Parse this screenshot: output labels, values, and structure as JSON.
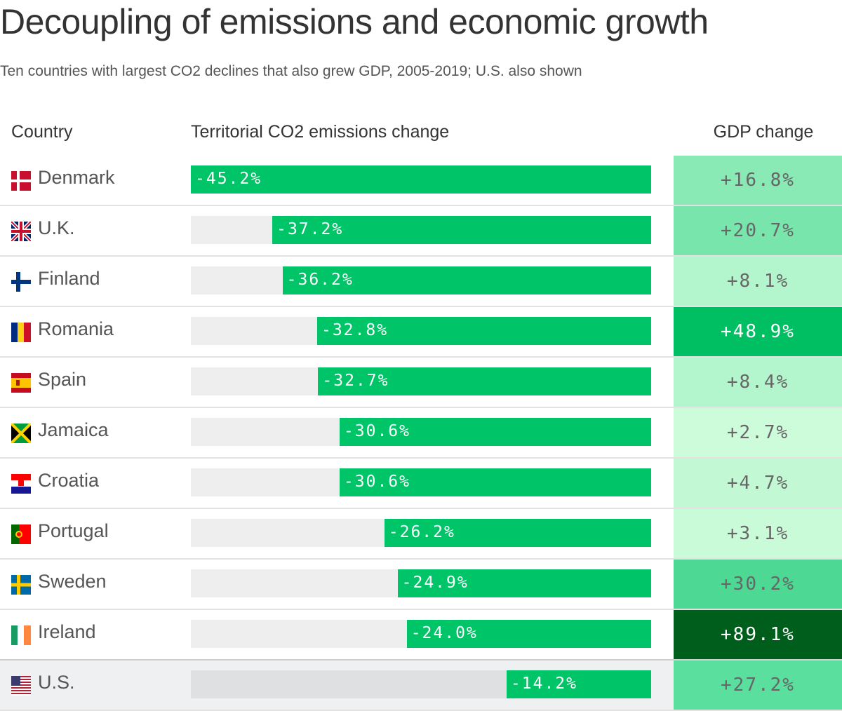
{
  "title": "Decoupling of emissions and economic growth",
  "subtitle": "Ten countries with largest CO2 declines that also grew GDP, 2005-2019; U.S. also shown",
  "chart_data": {
    "type": "table",
    "columns": [
      "Country",
      "Territorial CO2 emissions change",
      "GDP change"
    ],
    "bar_max": 45.2,
    "rows": [
      {
        "country": "Denmark",
        "flag": "dk",
        "co2": -45.2,
        "co2_label": "-45.2%",
        "gdp": 16.8,
        "gdp_label": "+16.8%",
        "gdp_color": "#8aeab6"
      },
      {
        "country": "U.K.",
        "flag": "uk",
        "co2": -37.2,
        "co2_label": "-37.2%",
        "gdp": 20.7,
        "gdp_label": "+20.7%",
        "gdp_color": "#78e5ac"
      },
      {
        "country": "Finland",
        "flag": "fi",
        "co2": -36.2,
        "co2_label": "-36.2%",
        "gdp": 8.1,
        "gdp_label": "+8.1%",
        "gdp_color": "#b3f5cd"
      },
      {
        "country": "Romania",
        "flag": "ro",
        "co2": -32.8,
        "co2_label": "-32.8%",
        "gdp": 48.9,
        "gdp_label": "+48.9%",
        "gdp_color": "#00bf63"
      },
      {
        "country": "Spain",
        "flag": "es",
        "co2": -32.7,
        "co2_label": "-32.7%",
        "gdp": 8.4,
        "gdp_label": "+8.4%",
        "gdp_color": "#b3f5cd"
      },
      {
        "country": "Jamaica",
        "flag": "jm",
        "co2": -30.6,
        "co2_label": "-30.6%",
        "gdp": 2.7,
        "gdp_label": "+2.7%",
        "gdp_color": "#cdfcdb"
      },
      {
        "country": "Croatia",
        "flag": "hr",
        "co2": -30.6,
        "co2_label": "-30.6%",
        "gdp": 4.7,
        "gdp_label": "+4.7%",
        "gdp_color": "#c2f8d3"
      },
      {
        "country": "Portugal",
        "flag": "pt",
        "co2": -26.2,
        "co2_label": "-26.2%",
        "gdp": 3.1,
        "gdp_label": "+3.1%",
        "gdp_color": "#c9fbd8"
      },
      {
        "country": "Sweden",
        "flag": "se",
        "co2": -24.9,
        "co2_label": "-24.9%",
        "gdp": 30.2,
        "gdp_label": "+30.2%",
        "gdp_color": "#4dd893"
      },
      {
        "country": "Ireland",
        "flag": "ie",
        "co2": -24.0,
        "co2_label": "-24.0%",
        "gdp": 89.1,
        "gdp_label": "+89.1%",
        "gdp_color": "#005e1c"
      },
      {
        "country": "U.S.",
        "flag": "us",
        "co2": -14.2,
        "co2_label": "-14.2%",
        "gdp": 27.2,
        "gdp_label": "+27.2%",
        "gdp_color": "#5adf9f"
      }
    ]
  }
}
